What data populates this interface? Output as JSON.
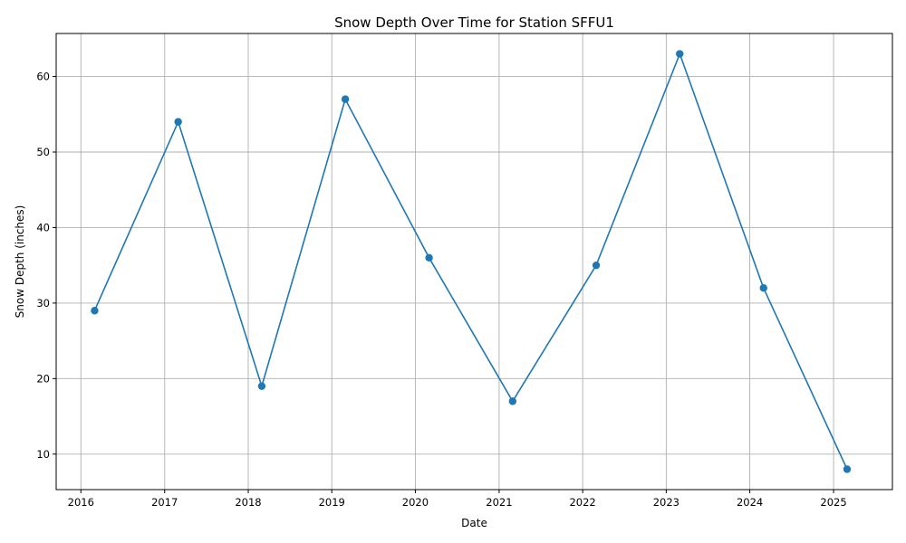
{
  "chart_data": {
    "type": "line",
    "title": "Snow Depth Over Time for Station SFFU1",
    "xlabel": "Date",
    "ylabel": "Snow Depth (inches)",
    "x_ticks": [
      "2016",
      "2017",
      "2018",
      "2019",
      "2020",
      "2021",
      "2022",
      "2023",
      "2024",
      "2025"
    ],
    "y_ticks": [
      "10",
      "20",
      "30",
      "40",
      "50",
      "60"
    ],
    "x": [
      "2016-03-01",
      "2017-03-01",
      "2018-03-01",
      "2019-03-01",
      "2020-03-01",
      "2021-03-01",
      "2022-03-01",
      "2023-03-01",
      "2024-03-01",
      "2025-03-01"
    ],
    "values": [
      29,
      54,
      19,
      57,
      36,
      17,
      35,
      63,
      32,
      8
    ],
    "xlim": [
      "2015-09-15",
      "2025-09-15"
    ],
    "ylim": [
      5.3,
      65.7
    ],
    "grid": true,
    "color": "#1f77b4",
    "marker": "circle"
  }
}
